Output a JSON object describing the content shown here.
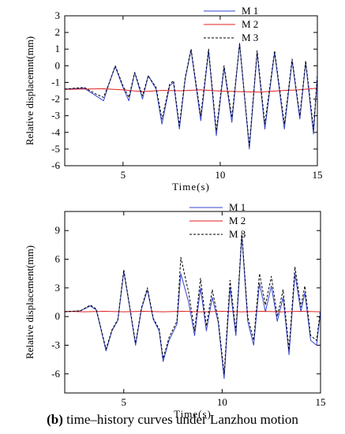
{
  "caption": {
    "label": "(b)",
    "text": " time–history curves under Lanzhou motion"
  },
  "chart_data": [
    {
      "type": "line",
      "xlabel": "Time(s)",
      "ylabel": "Relative displacemnt(mm)",
      "xlim": [
        2,
        15
      ],
      "ylim": [
        -6,
        3
      ],
      "xticks": [
        5,
        10,
        15
      ],
      "yticks": [
        -6,
        -5,
        -4,
        -3,
        -2,
        -1,
        0,
        1,
        2,
        3
      ],
      "grid": false,
      "legend": "top-right",
      "series": [
        {
          "name": "M 1",
          "color": "#3344cc",
          "dash": "",
          "points": [
            [
              2,
              -1.4
            ],
            [
              3,
              -1.35
            ],
            [
              3.6,
              -1.8
            ],
            [
              4.0,
              -2.1
            ],
            [
              4.3,
              -1.0
            ],
            [
              4.6,
              -0.05
            ],
            [
              5.0,
              -1.3
            ],
            [
              5.3,
              -2.1
            ],
            [
              5.6,
              -0.4
            ],
            [
              6.0,
              -2.0
            ],
            [
              6.3,
              -0.6
            ],
            [
              6.7,
              -1.4
            ],
            [
              7.0,
              -3.5
            ],
            [
              7.4,
              -1.2
            ],
            [
              7.6,
              -1.0
            ],
            [
              7.9,
              -3.8
            ],
            [
              8.2,
              -0.8
            ],
            [
              8.5,
              0.95
            ],
            [
              9.0,
              -3.3
            ],
            [
              9.4,
              0.9
            ],
            [
              9.8,
              -4.2
            ],
            [
              10.2,
              -0.1
            ],
            [
              10.6,
              -3.4
            ],
            [
              11.0,
              1.35
            ],
            [
              11.5,
              -5.0
            ],
            [
              11.9,
              0.8
            ],
            [
              12.3,
              -3.8
            ],
            [
              12.8,
              0.8
            ],
            [
              13.3,
              -3.8
            ],
            [
              13.7,
              0.3
            ],
            [
              14.1,
              -3.2
            ],
            [
              14.4,
              0.2
            ],
            [
              14.8,
              -4.1
            ],
            [
              15,
              -0.6
            ]
          ]
        },
        {
          "name": "M 2",
          "color": "#e02020",
          "dash": "",
          "points": [
            [
              2,
              -1.42
            ],
            [
              3,
              -1.4
            ],
            [
              4,
              -1.38
            ],
            [
              5,
              -1.45
            ],
            [
              6,
              -1.55
            ],
            [
              7,
              -1.48
            ],
            [
              8,
              -1.5
            ],
            [
              9,
              -1.45
            ],
            [
              10,
              -1.52
            ],
            [
              11,
              -1.55
            ],
            [
              12,
              -1.58
            ],
            [
              13,
              -1.5
            ],
            [
              14,
              -1.45
            ],
            [
              15,
              -1.35
            ]
          ]
        },
        {
          "name": "M 3",
          "color": "#000000",
          "dash": "3,2",
          "points": [
            [
              2,
              -1.4
            ],
            [
              3,
              -1.3
            ],
            [
              3.6,
              -1.7
            ],
            [
              4.0,
              -1.9
            ],
            [
              4.3,
              -1.0
            ],
            [
              4.6,
              0.0
            ],
            [
              5.0,
              -1.2
            ],
            [
              5.3,
              -1.9
            ],
            [
              5.6,
              -0.4
            ],
            [
              6.0,
              -1.8
            ],
            [
              6.3,
              -0.6
            ],
            [
              6.7,
              -1.3
            ],
            [
              7.0,
              -3.2
            ],
            [
              7.4,
              -1.1
            ],
            [
              7.6,
              -0.9
            ],
            [
              7.9,
              -3.6
            ],
            [
              8.2,
              -0.7
            ],
            [
              8.5,
              1.0
            ],
            [
              9.0,
              -3.0
            ],
            [
              9.4,
              1.0
            ],
            [
              9.8,
              -3.9
            ],
            [
              10.2,
              0.0
            ],
            [
              10.6,
              -3.1
            ],
            [
              11.0,
              1.3
            ],
            [
              11.5,
              -4.8
            ],
            [
              11.9,
              0.9
            ],
            [
              12.3,
              -3.5
            ],
            [
              12.8,
              0.9
            ],
            [
              13.3,
              -3.5
            ],
            [
              13.7,
              0.4
            ],
            [
              14.1,
              -3.0
            ],
            [
              14.4,
              0.3
            ],
            [
              14.8,
              -3.8
            ],
            [
              15,
              -0.5
            ]
          ]
        }
      ]
    },
    {
      "type": "line",
      "xlabel": "Time(s)",
      "ylabel": "Relative displacement(mm)",
      "xlim": [
        2,
        15
      ],
      "ylim": [
        -8,
        11
      ],
      "xticks": [
        5,
        10,
        15
      ],
      "yticks": [
        -6,
        -3,
        0,
        3,
        6,
        9
      ],
      "grid": false,
      "legend": "top-center",
      "series": [
        {
          "name": "M 1",
          "color": "#3344cc",
          "dash": "",
          "points": [
            [
              2,
              0.5
            ],
            [
              2.8,
              0.6
            ],
            [
              3.3,
              1.1
            ],
            [
              3.6,
              0.7
            ],
            [
              3.8,
              -1.0
            ],
            [
              4.1,
              -3.6
            ],
            [
              4.4,
              -1.5
            ],
            [
              4.7,
              -0.4
            ],
            [
              5.0,
              4.7
            ],
            [
              5.3,
              1.0
            ],
            [
              5.6,
              -3.0
            ],
            [
              5.9,
              0.8
            ],
            [
              6.2,
              2.8
            ],
            [
              6.5,
              -0.3
            ],
            [
              6.8,
              -1.5
            ],
            [
              7.0,
              -4.7
            ],
            [
              7.3,
              -2.5
            ],
            [
              7.7,
              -0.8
            ],
            [
              7.9,
              4.5
            ],
            [
              8.3,
              1.5
            ],
            [
              8.6,
              -2.0
            ],
            [
              8.9,
              3.0
            ],
            [
              9.2,
              -1.5
            ],
            [
              9.5,
              2.0
            ],
            [
              9.8,
              -0.6
            ],
            [
              10.1,
              -6.5
            ],
            [
              10.4,
              3.0
            ],
            [
              10.7,
              -2.0
            ],
            [
              11.0,
              8.5
            ],
            [
              11.3,
              -0.5
            ],
            [
              11.6,
              -3.0
            ],
            [
              11.9,
              3.5
            ],
            [
              12.2,
              0.5
            ],
            [
              12.5,
              3.2
            ],
            [
              12.8,
              -0.5
            ],
            [
              13.1,
              2.0
            ],
            [
              13.4,
              -4.0
            ],
            [
              13.7,
              4.5
            ],
            [
              14.0,
              0.5
            ],
            [
              14.2,
              2.5
            ],
            [
              14.5,
              -2.5
            ],
            [
              14.8,
              -3.0
            ],
            [
              15.0,
              0.5
            ]
          ]
        },
        {
          "name": "M 2",
          "color": "#e02020",
          "dash": "",
          "points": [
            [
              2,
              0.55
            ],
            [
              3,
              0.5
            ],
            [
              4,
              0.55
            ],
            [
              5,
              0.5
            ],
            [
              6,
              0.55
            ],
            [
              7,
              0.5
            ],
            [
              8,
              0.55
            ],
            [
              9,
              0.5
            ],
            [
              10,
              0.55
            ],
            [
              11,
              0.5
            ],
            [
              12,
              0.55
            ],
            [
              13,
              0.5
            ],
            [
              14,
              0.55
            ],
            [
              15,
              0.5
            ]
          ]
        },
        {
          "name": "M 3",
          "color": "#000000",
          "dash": "3,2",
          "points": [
            [
              2,
              0.5
            ],
            [
              2.8,
              0.6
            ],
            [
              3.3,
              1.2
            ],
            [
              3.6,
              0.8
            ],
            [
              3.8,
              -0.9
            ],
            [
              4.1,
              -3.4
            ],
            [
              4.4,
              -1.4
            ],
            [
              4.7,
              -0.3
            ],
            [
              5.0,
              4.9
            ],
            [
              5.3,
              1.1
            ],
            [
              5.6,
              -2.8
            ],
            [
              5.9,
              0.9
            ],
            [
              6.2,
              3.0
            ],
            [
              6.5,
              -0.2
            ],
            [
              6.8,
              -1.3
            ],
            [
              7.0,
              -4.4
            ],
            [
              7.3,
              -2.2
            ],
            [
              7.7,
              -0.5
            ],
            [
              7.9,
              6.2
            ],
            [
              8.3,
              2.5
            ],
            [
              8.6,
              -1.5
            ],
            [
              8.9,
              4.0
            ],
            [
              9.2,
              -1.0
            ],
            [
              9.5,
              2.8
            ],
            [
              9.8,
              -0.3
            ],
            [
              10.1,
              -6.0
            ],
            [
              10.4,
              3.8
            ],
            [
              10.7,
              -1.5
            ],
            [
              11.0,
              8.8
            ],
            [
              11.3,
              0.0
            ],
            [
              11.6,
              -2.5
            ],
            [
              11.9,
              4.5
            ],
            [
              12.2,
              1.2
            ],
            [
              12.5,
              4.2
            ],
            [
              12.8,
              0.0
            ],
            [
              13.1,
              2.8
            ],
            [
              13.4,
              -3.5
            ],
            [
              13.7,
              5.2
            ],
            [
              14.0,
              1.0
            ],
            [
              14.2,
              3.2
            ],
            [
              14.5,
              -2.0
            ],
            [
              14.8,
              -2.5
            ],
            [
              15.0,
              0.8
            ]
          ]
        }
      ]
    }
  ]
}
